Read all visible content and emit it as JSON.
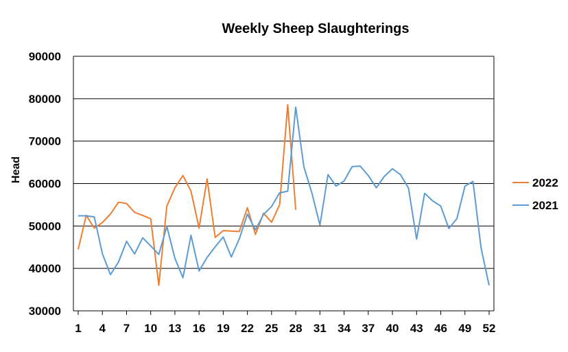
{
  "chart_data": {
    "type": "line",
    "title": "Weekly Sheep Slaughterings",
    "xlabel": "",
    "ylabel": "Head",
    "ylim": [
      30000,
      90000
    ],
    "yticks": [
      "30000",
      "40000",
      "50000",
      "60000",
      "70000",
      "80000",
      "90000"
    ],
    "xticks": [
      "1",
      "4",
      "7",
      "10",
      "13",
      "16",
      "19",
      "22",
      "25",
      "28",
      "31",
      "34",
      "37",
      "40",
      "43",
      "46",
      "49",
      "52"
    ],
    "xlim": [
      1,
      52
    ],
    "grid": "horizontal",
    "legend_position": "right",
    "series": [
      {
        "name": "2022",
        "color": "#ED7D31",
        "x": [
          1,
          2,
          3,
          4,
          5,
          6,
          7,
          8,
          9,
          10,
          11,
          12,
          13,
          14,
          15,
          16,
          17,
          18,
          19,
          20,
          21,
          22,
          23,
          24,
          25,
          26,
          27,
          28
        ],
        "values": [
          44500,
          52500,
          49500,
          50800,
          52800,
          55600,
          55300,
          53200,
          52500,
          51700,
          36000,
          54700,
          59000,
          61900,
          58200,
          49500,
          61100,
          47300,
          48900,
          48800,
          48700,
          54300,
          48000,
          53000,
          50900,
          55000,
          78600,
          53800
        ]
      },
      {
        "name": "2021",
        "color": "#5B9BD5",
        "x": [
          1,
          2,
          3,
          4,
          5,
          6,
          7,
          8,
          9,
          10,
          11,
          12,
          13,
          14,
          15,
          16,
          17,
          18,
          19,
          20,
          21,
          22,
          23,
          24,
          25,
          26,
          27,
          28,
          29,
          30,
          31,
          32,
          33,
          34,
          35,
          36,
          37,
          38,
          39,
          40,
          41,
          42,
          43,
          44,
          45,
          46,
          47,
          48,
          49,
          50,
          51,
          52
        ],
        "values": [
          52400,
          52400,
          52100,
          43500,
          38500,
          41500,
          46400,
          43400,
          47200,
          45300,
          43300,
          49900,
          42400,
          37800,
          47800,
          39400,
          42600,
          45100,
          47400,
          42700,
          47000,
          52800,
          49100,
          52700,
          54600,
          57800,
          58200,
          78000,
          64000,
          57800,
          50200,
          62100,
          59400,
          60600,
          64000,
          64100,
          61900,
          59000,
          61700,
          63500,
          62100,
          58900,
          46900,
          57700,
          55900,
          54700,
          49400,
          51700,
          59400,
          60500,
          44800,
          36000
        ]
      }
    ]
  }
}
